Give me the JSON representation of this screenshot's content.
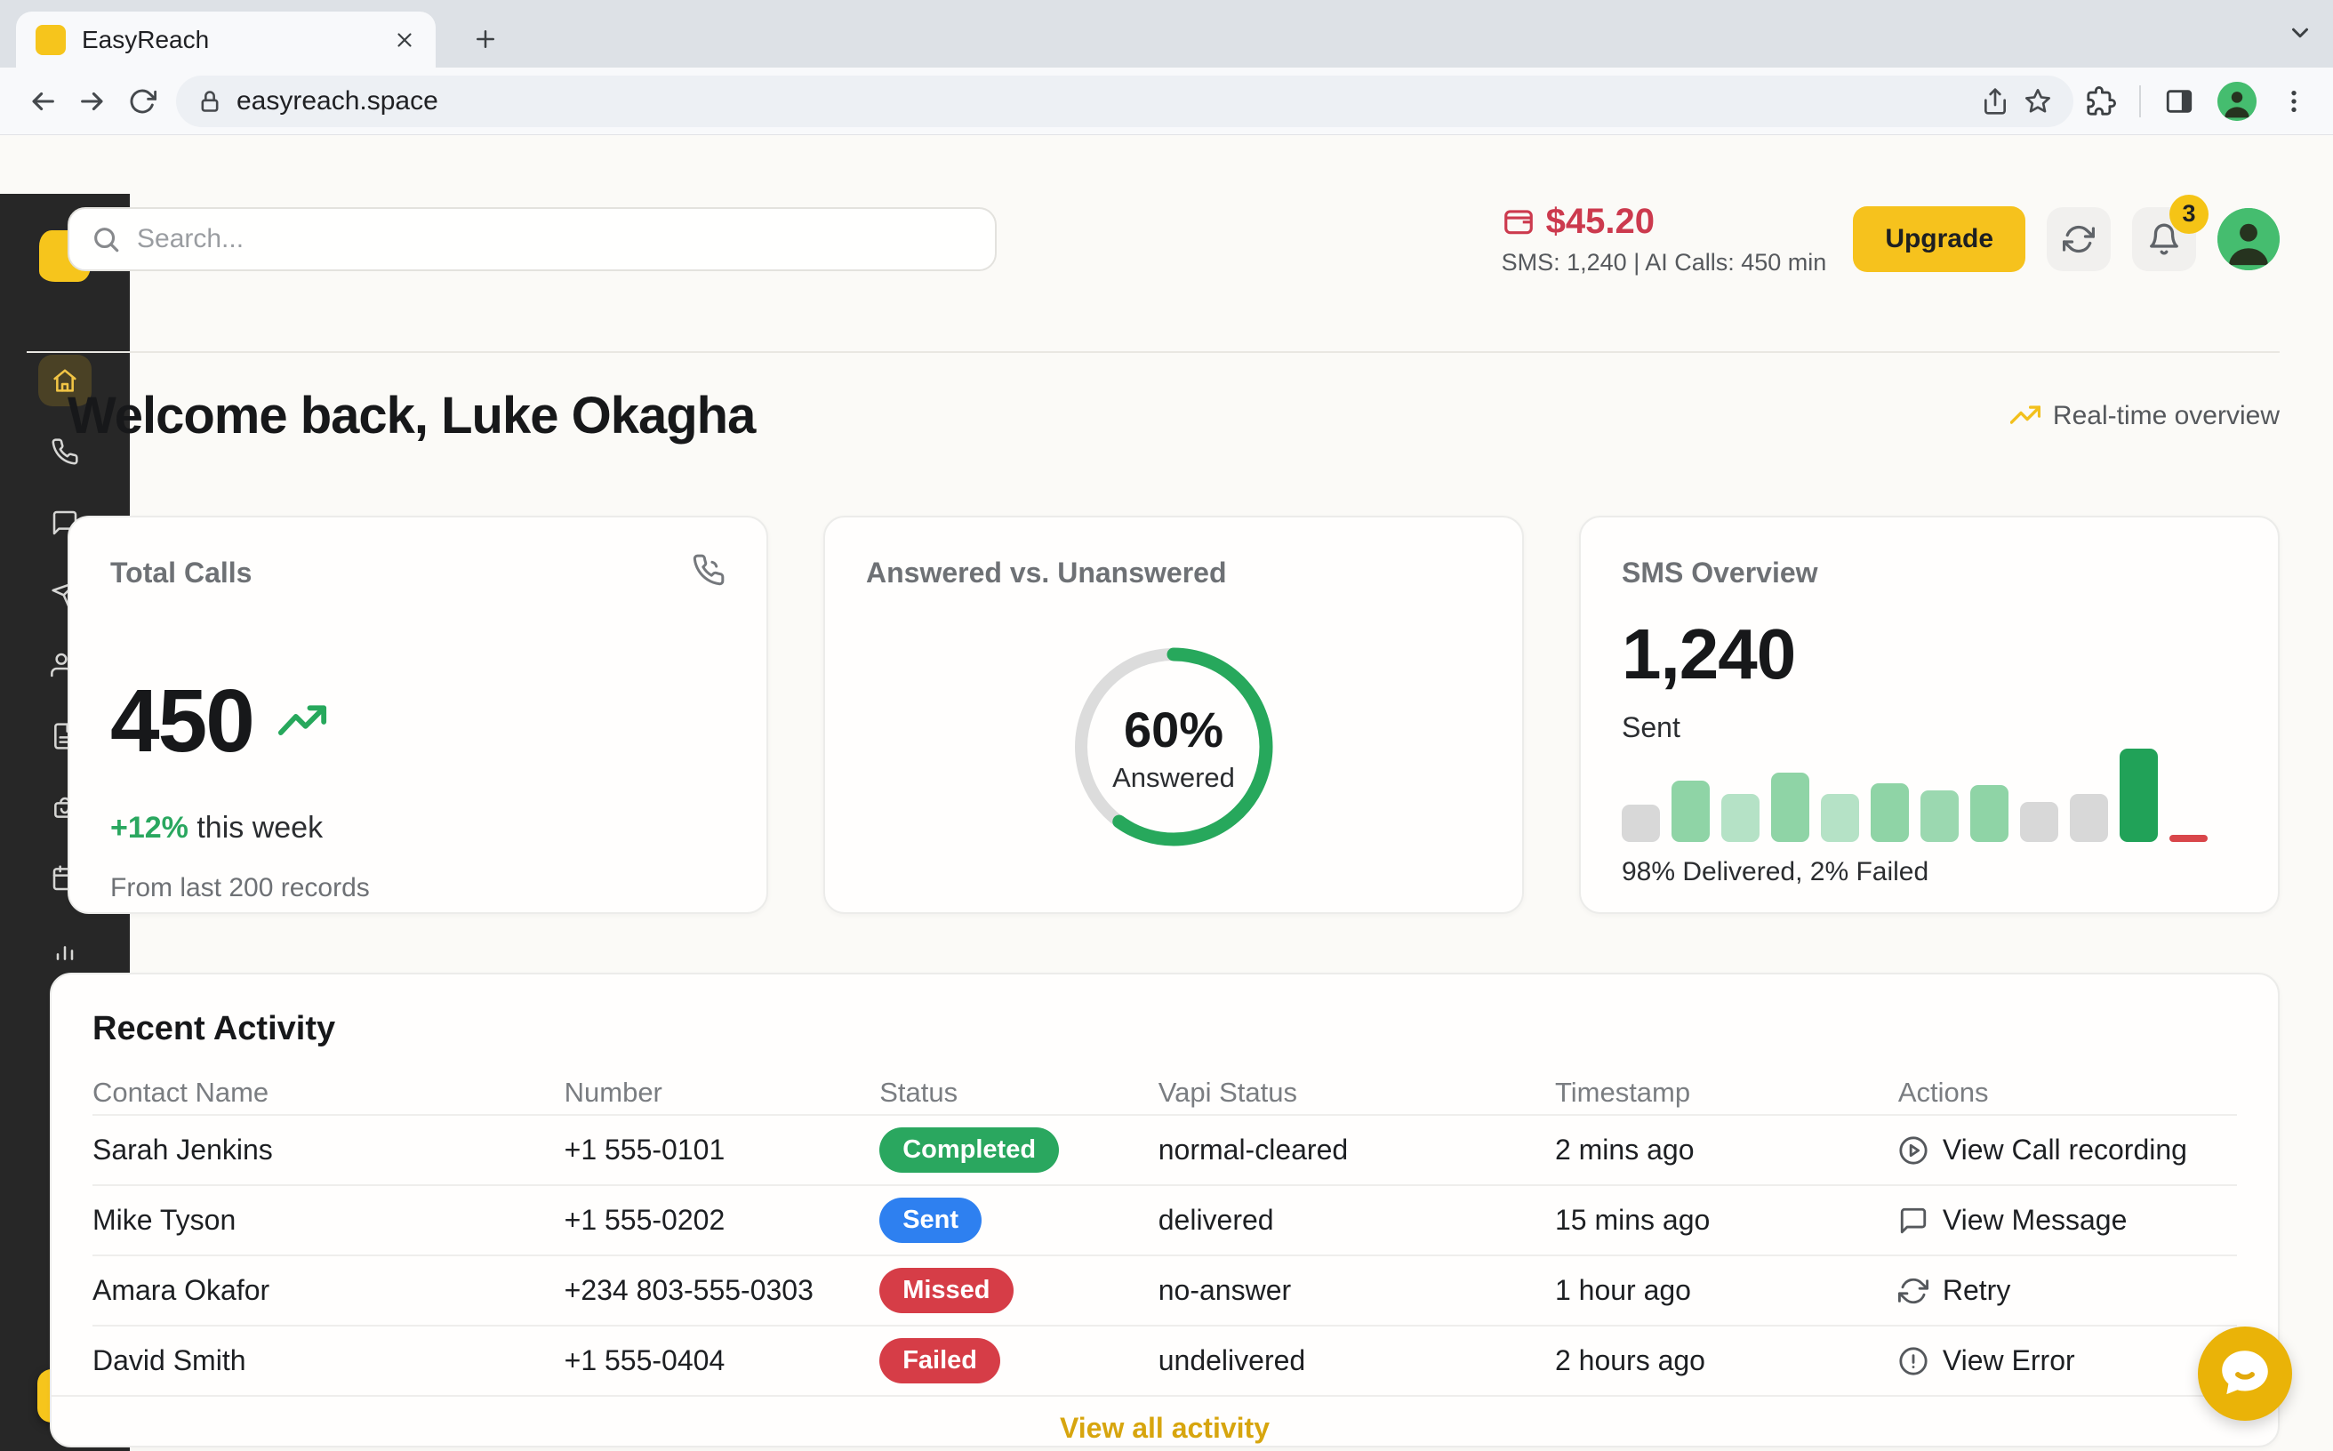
{
  "browser": {
    "tab_title": "EasyReach",
    "url": "easyreach.space",
    "toolbar_icons": [
      "back-icon",
      "forward-icon",
      "reload-icon",
      "lock-icon",
      "share-icon",
      "star-icon",
      "extensions-icon",
      "side-panel-icon",
      "profile-avatar",
      "menu-dots-icon"
    ]
  },
  "header": {
    "search_placeholder": "Search...",
    "balance": "$45.20",
    "usage": "SMS: 1,240 | AI Calls: 450 min",
    "upgrade_label": "Upgrade",
    "notification_count": "3",
    "colors": {
      "balance": "#cc3a4e",
      "upgrade_bg": "#f6c21d",
      "badge_bg": "#f5c416"
    }
  },
  "welcome": {
    "title": "Welcome back, Luke Okagha",
    "overview_label": "Real-time overview"
  },
  "sidebar": {
    "items": [
      {
        "id": "home",
        "icon": "home-icon",
        "active": true
      },
      {
        "id": "calls",
        "icon": "phone-icon",
        "active": false
      },
      {
        "id": "messages",
        "icon": "chat-icon",
        "active": false
      },
      {
        "id": "campaigns",
        "icon": "send-icon",
        "active": false
      },
      {
        "id": "contacts",
        "icon": "users-icon",
        "active": false
      },
      {
        "id": "documents",
        "icon": "file-icon",
        "active": false
      },
      {
        "id": "recurring",
        "icon": "box-sync-icon",
        "active": false
      },
      {
        "id": "calendar",
        "icon": "calendar-icon",
        "active": false
      },
      {
        "id": "analytics",
        "icon": "bar-chart-icon",
        "active": false
      },
      {
        "id": "profile",
        "icon": "user-icon",
        "active": false
      }
    ],
    "colors": {
      "bg": "#272727",
      "accent": "#f6c51c"
    }
  },
  "cards": {
    "total_calls": {
      "title": "Total Calls",
      "value": "450",
      "delta": "+12%",
      "delta_suffix": " this week",
      "subtext": "From last 200 records",
      "corner_icon": "phone-call-icon"
    },
    "answered": {
      "title": "Answered vs. Unanswered",
      "percent_label": "60%",
      "center_sublabel": "Answered"
    },
    "sms": {
      "title": "SMS Overview",
      "value": "1,240",
      "label": "Sent",
      "caption": "98% Delivered, 2% Failed"
    }
  },
  "chart_data": [
    {
      "type": "pie",
      "title": "Answered vs. Unanswered",
      "slices": [
        {
          "label": "Answered",
          "value": 60,
          "color": "#27a85c"
        },
        {
          "label": "Unanswered",
          "value": 40,
          "color": "#dcdcdc"
        }
      ],
      "center_label": "60%",
      "center_sublabel": "Answered",
      "style": "donut"
    },
    {
      "type": "bar",
      "title": "SMS Overview",
      "values": [
        40,
        66,
        51,
        74,
        51,
        63,
        55,
        61,
        43,
        51,
        100,
        8
      ],
      "bar_colors": [
        "#d8d8d8",
        "#8fd4a6",
        "#b5e2c6",
        "#8fd4a6",
        "#b5e2c6",
        "#8fd4a6",
        "#9bd8b0",
        "#8fd4a6",
        "#d8d8d8",
        "#d8d8d8",
        "#21a258",
        "#d9464a"
      ],
      "ylim": [
        0,
        100
      ],
      "grid": false,
      "caption": "98% Delivered, 2% Failed"
    }
  ],
  "table": {
    "title": "Recent Activity",
    "columns": [
      "Contact Name",
      "Number",
      "Status",
      "Vapi Status",
      "Timestamp",
      "Actions"
    ],
    "rows": [
      {
        "name": "Sarah Jenkins",
        "number": "+1 555-0101",
        "status": "Completed",
        "status_color": "#2aa75f",
        "vapi": "normal-cleared",
        "time": "2 mins ago",
        "action": "View Call recording",
        "action_icon": "play-circle-icon"
      },
      {
        "name": "Mike Tyson",
        "number": "+1 555-0202",
        "status": "Sent",
        "status_color": "#2e80f0",
        "vapi": "delivered",
        "time": "15 mins ago",
        "action": "View Message",
        "action_icon": "message-square-icon"
      },
      {
        "name": "Amara Okafor",
        "number": "+234 803-555-0303",
        "status": "Missed",
        "status_color": "#d63d47",
        "vapi": "no-answer",
        "time": "1 hour ago",
        "action": "Retry",
        "action_icon": "retry-icon"
      },
      {
        "name": "David Smith",
        "number": "+1 555-0404",
        "status": "Failed",
        "status_color": "#d63d47",
        "vapi": "undelivered",
        "time": "2 hours ago",
        "action": "View Error",
        "action_icon": "alert-circle-icon"
      }
    ],
    "footer_link": "View all activity"
  }
}
